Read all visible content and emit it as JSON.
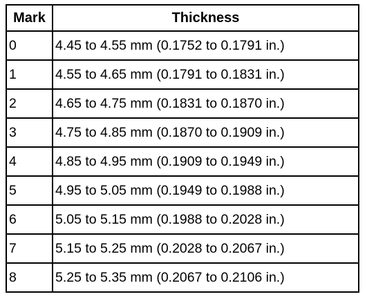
{
  "table": {
    "header": [
      "Mark",
      "Thickness"
    ],
    "rows": [
      [
        "0",
        "4.45 to 4.55 mm (0.1752 to 0.1791 in.)"
      ],
      [
        "1",
        "4.55 to 4.65 mm (0.1791 to 0.1831 in.)"
      ],
      [
        "2",
        "4.65 to 4.75 mm (0.1831 to 0.1870 in.)"
      ],
      [
        "3",
        "4.75 to 4.85 mm (0.1870 to 0.1909 in.)"
      ],
      [
        "4",
        "4.85 to 4.95 mm (0.1909 to 0.1949 in.)"
      ],
      [
        "5",
        "4.95 to 5.05 mm (0.1949 to 0.1988 in.)"
      ],
      [
        "6",
        "5.05 to 5.15 mm (0.1988 to 0.2028 in.)"
      ],
      [
        "7",
        "5.15 to 5.25 mm (0.2028 to 0.2067 in.)"
      ],
      [
        "8",
        "5.25 to 5.35 mm (0.2067 to 0.2106 in.)"
      ]
    ]
  }
}
